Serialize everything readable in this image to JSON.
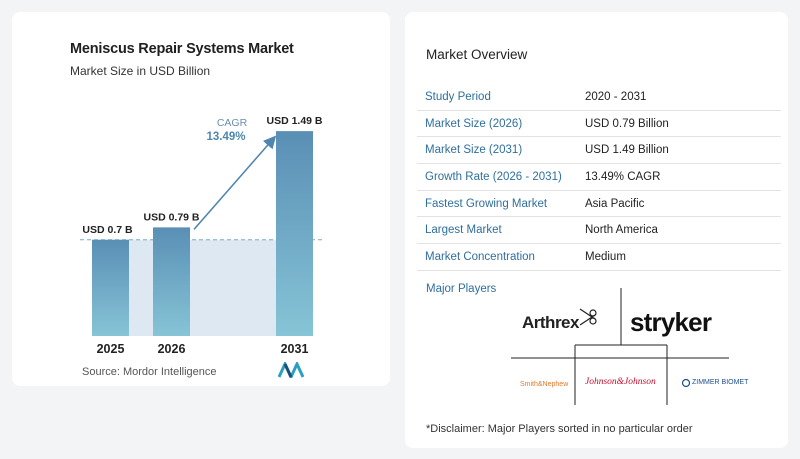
{
  "chart_data": {
    "type": "bar",
    "title": "Meniscus Repair Systems Market",
    "subtitle": "Market Size in USD Billion",
    "categories": [
      "2025",
      "2026",
      "2031"
    ],
    "values": [
      0.7,
      0.79,
      1.49
    ],
    "data_labels": [
      "USD 0.7 B",
      "USD 0.79 B",
      "USD 1.49 B"
    ],
    "ylim": [
      0,
      1.6
    ],
    "cagr_label": "CAGR",
    "cagr_value": "13.49%",
    "bar_color": "#5a8fb5",
    "bar_color_light": "#7fbfd4",
    "shade_color": "#dde8f2",
    "arrow_color": "#4f86b0"
  },
  "source": "Source:  Mordor Intelligence",
  "overview": {
    "title": "Market Overview",
    "rows": [
      {
        "label": "Study Period",
        "value": "2020 - 2031"
      },
      {
        "label": "Market Size (2026)",
        "value": "USD 0.79 Billion"
      },
      {
        "label": "Market Size (2031)",
        "value": "USD 1.49 Billion"
      },
      {
        "label": "Growth Rate (2026 - 2031)",
        "value": "13.49% CAGR"
      },
      {
        "label": "Fastest Growing Market",
        "value": "Asia Pacific"
      },
      {
        "label": "Largest Market",
        "value": "North America"
      },
      {
        "label": "Market Concentration",
        "value": "Medium"
      }
    ]
  },
  "major_players": {
    "title": "Major Players",
    "logos": [
      "Arthrex",
      "stryker",
      "Smith&Nephew",
      "Johnson&Johnson",
      "ZIMMER BIOMET"
    ]
  },
  "disclaimer": "*Disclaimer: Major Players sorted in no particular order"
}
